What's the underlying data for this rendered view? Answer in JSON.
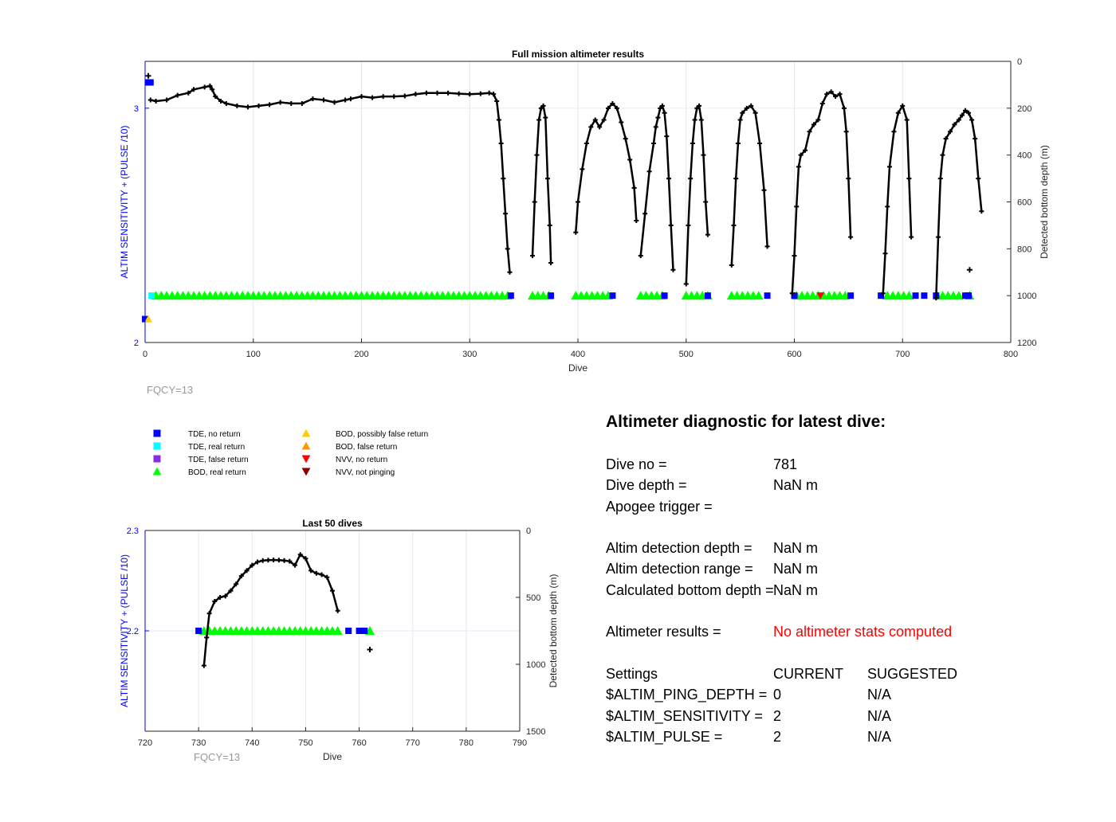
{
  "chart_data": [
    {
      "type": "scatter",
      "title": "Full mission altimeter results",
      "xlabel": "Dive",
      "ylabel_left": "ALTIM SENSITIVITY + (PULSE /10)",
      "ylabel_right": "Detected bottom depth (m)",
      "xlim": [
        0,
        800
      ],
      "ylim_left": [
        2,
        3.2
      ],
      "ylim_right": [
        1200,
        0
      ],
      "x_ticks": [
        0,
        100,
        200,
        300,
        400,
        500,
        600,
        700,
        800
      ],
      "y_left_ticks": [
        2,
        3
      ],
      "y_right_ticks": [
        0,
        200,
        400,
        600,
        800,
        1000,
        1200
      ],
      "grid": true,
      "footnote": "FQCY=13",
      "bottom_depth_series": {
        "name": "Detected bottom depth",
        "segments": [
          [
            [
              5,
              165
            ],
            [
              10,
              170
            ],
            [
              20,
              165
            ],
            [
              30,
              145
            ],
            [
              40,
              135
            ],
            [
              45,
              120
            ],
            [
              55,
              110
            ],
            [
              60,
              105
            ],
            [
              62,
              120
            ],
            [
              65,
              150
            ],
            [
              70,
              170
            ],
            [
              75,
              180
            ],
            [
              85,
              190
            ],
            [
              95,
              195
            ],
            [
              105,
              190
            ],
            [
              115,
              185
            ],
            [
              125,
              175
            ],
            [
              135,
              180
            ],
            [
              145,
              180
            ],
            [
              155,
              160
            ],
            [
              165,
              165
            ],
            [
              175,
              175
            ],
            [
              185,
              165
            ],
            [
              190,
              160
            ],
            [
              200,
              150
            ],
            [
              210,
              155
            ],
            [
              220,
              150
            ],
            [
              230,
              150
            ],
            [
              240,
              148
            ],
            [
              250,
              140
            ],
            [
              260,
              135
            ],
            [
              270,
              135
            ],
            [
              280,
              135
            ],
            [
              290,
              138
            ],
            [
              300,
              140
            ],
            [
              310,
              138
            ],
            [
              318,
              135
            ],
            [
              322,
              140
            ],
            [
              325,
              170
            ],
            [
              327,
              250
            ],
            [
              329,
              350
            ],
            [
              331,
              500
            ],
            [
              333,
              650
            ],
            [
              335,
              800
            ],
            [
              337,
              900
            ]
          ],
          [
            [
              358,
              830
            ],
            [
              360,
              600
            ],
            [
              362,
              400
            ],
            [
              364,
              250
            ],
            [
              366,
              200
            ],
            [
              368,
              190
            ],
            [
              370,
              240
            ],
            [
              372,
              500
            ],
            [
              374,
              700
            ],
            [
              375,
              860
            ]
          ],
          [
            [
              398,
              730
            ],
            [
              400,
              600
            ],
            [
              404,
              460
            ],
            [
              408,
              350
            ],
            [
              412,
              280
            ],
            [
              416,
              250
            ],
            [
              420,
              280
            ],
            [
              424,
              250
            ],
            [
              428,
              200
            ],
            [
              432,
              180
            ],
            [
              436,
              200
            ],
            [
              440,
              260
            ],
            [
              444,
              330
            ],
            [
              448,
              420
            ],
            [
              452,
              540
            ],
            [
              454,
              680
            ]
          ],
          [
            [
              458,
              830
            ],
            [
              462,
              650
            ],
            [
              466,
              470
            ],
            [
              470,
              350
            ],
            [
              472,
              280
            ],
            [
              474,
              240
            ],
            [
              476,
              200
            ],
            [
              478,
              190
            ],
            [
              480,
              220
            ],
            [
              482,
              320
            ],
            [
              484,
              500
            ],
            [
              486,
              700
            ],
            [
              488,
              890
            ]
          ],
          [
            [
              500,
              950
            ],
            [
              502,
              700
            ],
            [
              504,
              500
            ],
            [
              506,
              350
            ],
            [
              508,
              250
            ],
            [
              510,
              200
            ],
            [
              512,
              190
            ],
            [
              514,
              250
            ],
            [
              516,
              400
            ],
            [
              518,
              600
            ],
            [
              520,
              740
            ]
          ],
          [
            [
              542,
              870
            ],
            [
              544,
              700
            ],
            [
              546,
              500
            ],
            [
              548,
              350
            ],
            [
              550,
              250
            ],
            [
              552,
              220
            ],
            [
              556,
              200
            ],
            [
              560,
              190
            ],
            [
              564,
              220
            ],
            [
              568,
              350
            ],
            [
              572,
              550
            ],
            [
              575,
              790
            ]
          ],
          [
            [
              598,
              990
            ],
            [
              600,
              830
            ],
            [
              602,
              620
            ],
            [
              604,
              450
            ],
            [
              606,
              400
            ],
            [
              610,
              380
            ],
            [
              614,
              300
            ],
            [
              618,
              270
            ],
            [
              622,
              250
            ],
            [
              626,
              180
            ],
            [
              630,
              140
            ],
            [
              634,
              130
            ],
            [
              638,
              150
            ],
            [
              642,
              140
            ],
            [
              646,
              200
            ],
            [
              648,
              300
            ],
            [
              650,
              500
            ],
            [
              652,
              750
            ]
          ],
          [
            [
              682,
              990
            ],
            [
              684,
              820
            ],
            [
              686,
              620
            ],
            [
              688,
              450
            ],
            [
              692,
              300
            ],
            [
              696,
              220
            ],
            [
              700,
              190
            ],
            [
              704,
              250
            ],
            [
              706,
              500
            ],
            [
              708,
              750
            ]
          ],
          [
            [
              731,
              1010
            ],
            [
              733,
              750
            ],
            [
              735,
              500
            ],
            [
              737,
              400
            ],
            [
              740,
              330
            ],
            [
              744,
              300
            ],
            [
              748,
              270
            ],
            [
              752,
              250
            ],
            [
              755,
              230
            ],
            [
              758,
              210
            ],
            [
              761,
              220
            ],
            [
              764,
              250
            ],
            [
              767,
              330
            ],
            [
              770,
              500
            ],
            [
              773,
              640
            ]
          ]
        ],
        "isolated": [
          [
            3,
            62
          ],
          [
            762,
            890
          ]
        ]
      },
      "markers": [
        {
          "name": "TDE, no return",
          "points": [
            [
              3,
              3.11
            ],
            [
              5,
              3.11
            ],
            [
              0,
              2.1
            ],
            [
              338,
              2.2
            ],
            [
              375,
              2.2
            ],
            [
              432,
              2.2
            ],
            [
              480,
              2.2
            ],
            [
              520,
              2.2
            ],
            [
              575,
              2.2
            ],
            [
              600,
              2.2
            ],
            [
              652,
              2.2
            ],
            [
              680,
              2.2
            ],
            [
              712,
              2.2
            ],
            [
              720,
              2.2
            ],
            [
              731,
              2.2
            ],
            [
              758,
              2.2
            ],
            [
              760,
              2.2
            ],
            [
              761,
              2.2
            ]
          ]
        },
        {
          "name": "TDE, real return",
          "points": [
            [
              6,
              2.2
            ]
          ]
        },
        {
          "name": "TDE, false return",
          "points": []
        },
        {
          "name": "BOD, real return",
          "ranges": [
            [
              10,
              335
            ],
            [
              358,
              373
            ],
            [
              398,
              432
            ],
            [
              458,
              478
            ],
            [
              500,
              520
            ],
            [
              542,
              570
            ],
            [
              602,
              650
            ],
            [
              686,
              708
            ],
            [
              732,
              756
            ],
            [
              762,
              762
            ]
          ]
        },
        {
          "name": "BOD, possibly false return",
          "points": [
            [
              3,
              2.1
            ]
          ]
        },
        {
          "name": "BOD, false return",
          "points": []
        },
        {
          "name": "NVV, no return",
          "points": [
            [
              624,
              2.2
            ]
          ]
        },
        {
          "name": "NVV, not pinging",
          "points": []
        }
      ]
    },
    {
      "type": "scatter",
      "title": "Last 50 dives",
      "xlabel": "Dive",
      "ylabel_left": "ALTIM SENSITIVITY + (PULSE /10)",
      "ylabel_right": "Detected bottom depth (m)",
      "xlim": [
        720,
        790
      ],
      "ylim_left": [
        2.1,
        2.3
      ],
      "ylim_right": [
        1500,
        0
      ],
      "x_ticks": [
        720,
        730,
        740,
        750,
        760,
        770,
        780,
        790
      ],
      "y_left_ticks": [
        2.2,
        2.3
      ],
      "y_right_ticks": [
        0,
        500,
        1000,
        1500
      ],
      "grid": true,
      "footnote": "FQCY=13",
      "bottom_depth_series": {
        "name": "Detected bottom depth",
        "segments": [
          [
            [
              731,
              1010
            ],
            [
              731.5,
              800
            ],
            [
              732,
              620
            ],
            [
              733,
              530
            ],
            [
              734,
              500
            ],
            [
              735,
              490
            ],
            [
              736,
              450
            ],
            [
              737,
              400
            ],
            [
              738,
              340
            ],
            [
              739,
              300
            ],
            [
              740,
              260
            ],
            [
              741,
              235
            ],
            [
              742,
              225
            ],
            [
              743,
              222
            ],
            [
              744,
              220
            ],
            [
              745,
              222
            ],
            [
              746,
              225
            ],
            [
              747,
              230
            ],
            [
              748,
              260
            ],
            [
              749,
              180
            ],
            [
              750,
              210
            ],
            [
              751,
              300
            ],
            [
              752,
              320
            ],
            [
              753,
              330
            ],
            [
              754,
              350
            ],
            [
              755,
              450
            ],
            [
              756,
              600
            ]
          ]
        ],
        "isolated": [
          [
            762,
            890
          ]
        ]
      },
      "markers": [
        {
          "name": "TDE, no return",
          "points": [
            [
              730,
              2.2
            ],
            [
              758,
              2.2
            ],
            [
              760,
              2.2
            ],
            [
              761,
              2.2
            ]
          ]
        },
        {
          "name": "BOD, real return",
          "range": [
            731,
            756
          ],
          "extra": [
            762
          ]
        }
      ]
    }
  ],
  "legend": [
    {
      "label": "TDE, no return",
      "shape": "square",
      "color": "#0000ff"
    },
    {
      "label": "TDE, real return",
      "shape": "square",
      "color": "#00ffff"
    },
    {
      "label": "TDE, false return",
      "shape": "square",
      "color": "#8b2be2"
    },
    {
      "label": "BOD, real return",
      "shape": "triangle-up",
      "color": "#00ff00"
    },
    {
      "label": "BOD, possibly false return",
      "shape": "triangle-up",
      "color": "#ffcc00"
    },
    {
      "label": "BOD, false return",
      "shape": "triangle-up",
      "color": "#ff9900"
    },
    {
      "label": "NVV, no return",
      "shape": "triangle-down",
      "color": "#ff0000"
    },
    {
      "label": "NVV, not pinging",
      "shape": "triangle-down",
      "color": "#8b0000"
    }
  ],
  "colors": {
    "left_axis": "#0000ff",
    "footnote": "#999999",
    "error_text": "#ff0000"
  },
  "diagnostic": {
    "title": "Altimeter diagnostic for latest dive:",
    "rows": [
      {
        "label": "Dive no =",
        "value": "781"
      },
      {
        "label": "Dive depth =",
        "value": "NaN m"
      },
      {
        "label": "Apogee trigger =",
        "value": ""
      },
      {
        "label": "Altim detection depth =",
        "value": "NaN m"
      },
      {
        "label": "Altim detection range =",
        "value": "NaN m"
      },
      {
        "label": "Calculated bottom depth =",
        "value": "NaN m"
      },
      {
        "label": "Altimeter results =",
        "value": "No altimeter stats computed"
      }
    ],
    "settings_header": {
      "label": "Settings",
      "current": "CURRENT",
      "suggested": "SUGGESTED"
    },
    "settings": [
      {
        "name": "$ALTIM_PING_DEPTH =",
        "current": "0",
        "suggested": "N/A"
      },
      {
        "name": "$ALTIM_SENSITIVITY =",
        "current": "2",
        "suggested": "N/A"
      },
      {
        "name": "$ALTIM_PULSE =",
        "current": "2",
        "suggested": "N/A"
      }
    ]
  }
}
